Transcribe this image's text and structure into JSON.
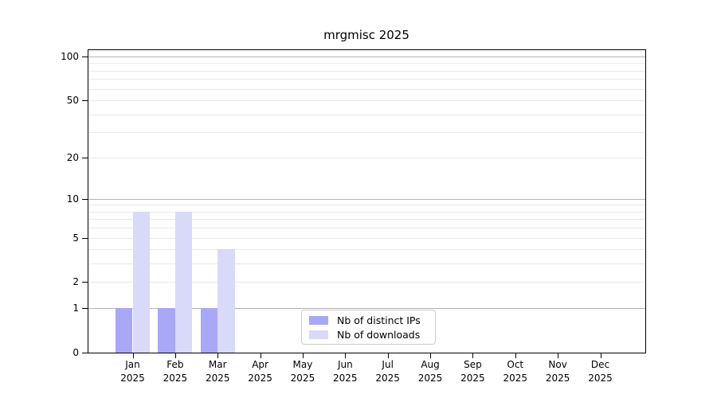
{
  "chart_data": {
    "type": "bar",
    "title": "mrgmisc 2025",
    "categories": [
      "Jan",
      "Feb",
      "Mar",
      "Apr",
      "May",
      "Jun",
      "Jul",
      "Aug",
      "Sep",
      "Oct",
      "Nov",
      "Dec"
    ],
    "year_label": "2025",
    "series": [
      {
        "name": "Nb of distinct IPs",
        "color": "#a8a8f6",
        "values": [
          1,
          1,
          1,
          0,
          0,
          0,
          0,
          0,
          0,
          0,
          0,
          0
        ]
      },
      {
        "name": "Nb of downloads",
        "color": "#d9d9f9",
        "values": [
          8,
          8,
          4,
          0,
          0,
          0,
          0,
          0,
          0,
          0,
          0,
          0
        ]
      }
    ],
    "yscale": "log1p",
    "ylim": [
      0,
      112
    ],
    "y_ticks": [
      0,
      1,
      2,
      5,
      10,
      20,
      50,
      100
    ],
    "grid": {
      "major_values": [
        1,
        10,
        100
      ],
      "minor_values": [
        2,
        3,
        4,
        5,
        6,
        7,
        8,
        9,
        20,
        30,
        40,
        50,
        60,
        70,
        80,
        90
      ],
      "major_color": "#b3b3b3",
      "minor_color": "#e9e9e9"
    },
    "legend": {
      "position": "bottom-center"
    },
    "axis_color": "#000000"
  }
}
